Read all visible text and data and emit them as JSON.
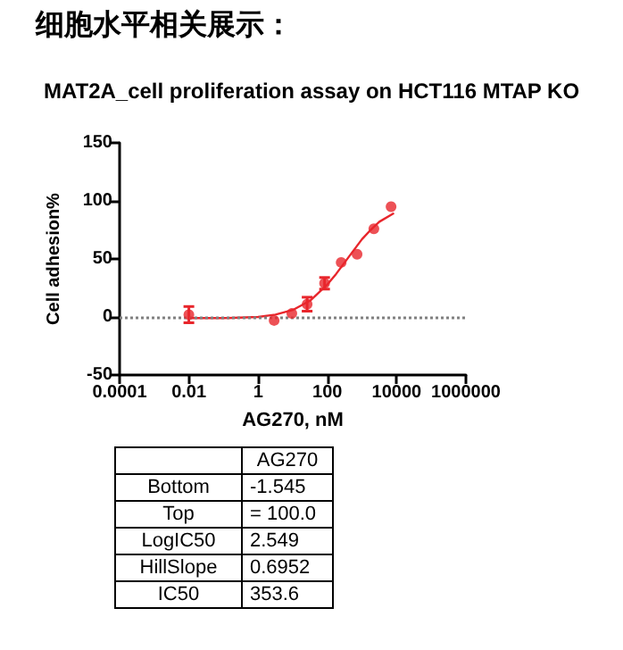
{
  "chart_data": {
    "type": "scatter",
    "title": "细胞水平相关展示：",
    "subtitle": "MAT2A_cell proliferation assay on HCT116 MTAP KO",
    "xlabel": "AG270, nM",
    "ylabel": "Cell adhesion%",
    "log": "x",
    "xlim": [
      0.0001,
      1000000
    ],
    "xticks": [
      0.0001,
      0.01,
      1,
      100,
      10000,
      1000000
    ],
    "ylim": [
      -50,
      150
    ],
    "yticks": [
      -50,
      0,
      50,
      100,
      150
    ],
    "series": [
      {
        "color": "#e8262c",
        "x": [
          0.01,
          2.9,
          9.4,
          26,
          83,
          250,
          720,
          2200,
          6900
        ],
        "values": [
          2,
          -3,
          3,
          11,
          29,
          47,
          54,
          76,
          95
        ],
        "errors": [
          7,
          null,
          null,
          6,
          5,
          null,
          null,
          null,
          null
        ],
        "marker": "circle"
      },
      {
        "type": "line",
        "color": "#e8262c",
        "x": [
          0.01,
          0.1,
          1,
          3.16,
          10,
          31.6,
          100,
          178,
          316,
          562,
          1000,
          1778,
          3162,
          7943
        ],
        "values": [
          -1,
          -1,
          0,
          2,
          6,
          14,
          28,
          37,
          47,
          57,
          67,
          75,
          82,
          89
        ],
        "marker": "none",
        "line_style": "solid"
      }
    ],
    "ref_lines": [
      {
        "axis": "y",
        "value": 0,
        "color": "#808080",
        "line_style": "dotted"
      }
    ],
    "annotations": [
      "AG270",
      "Bottom",
      "-1.545",
      "Top",
      "= 100.0",
      "LogIC50",
      "2.549",
      "HillSlope",
      "0.6952",
      "IC50",
      "353.6"
    ],
    "grid": false
  }
}
